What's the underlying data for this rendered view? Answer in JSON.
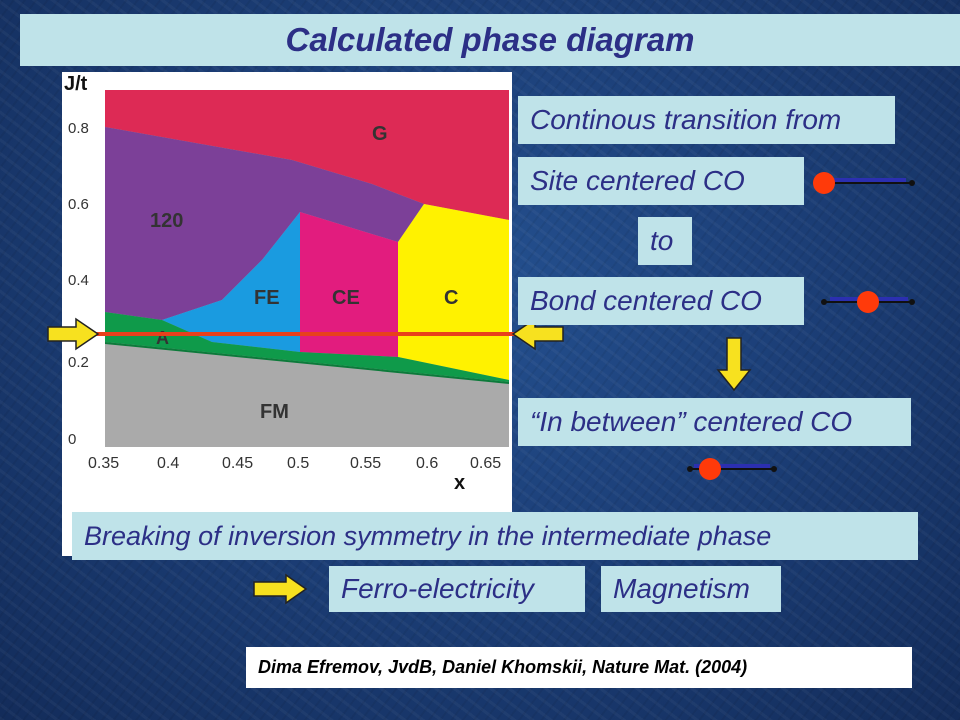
{
  "title": "Calculated phase diagram",
  "labels": {
    "continuous": "Continous transition from",
    "site_centered": "Site centered CO",
    "to": "to",
    "bond_centered": "Bond centered CO",
    "in_between": "“In between” centered CO",
    "breaking": "Breaking of inversion symmetry in the intermediate phase",
    "ferro": "Ferro-electricity",
    "magnetism": "Magnetism"
  },
  "citation": "Dima Efremov, JvdB, Daniel Khomskii, Nature Mat. (2004)",
  "diagram": {
    "y_axis_label": "J/t",
    "x_axis_label": "x",
    "x_ticks": [
      "0.35",
      "0.4",
      "0.45",
      "0.5",
      "0.55",
      "0.6",
      "0.65"
    ],
    "y_ticks": [
      "0",
      "0.2",
      "0.4",
      "0.6",
      "0.8"
    ],
    "regions": {
      "G": "G",
      "r120": "120",
      "FE": "FE",
      "CE": "CE",
      "C": "C",
      "A": "A",
      "FM": "FM"
    }
  },
  "colors": {
    "box_bg": "#bfe3e9",
    "box_text": "#2c2f86",
    "G": "#dd2a55",
    "r120": "#7c4098",
    "FE": "#1a9be0",
    "CE": "#e21c7e",
    "C": "#fff200",
    "A": "#0f9a4a",
    "FM": "#aaaaaa",
    "arrow": "#f7e11f",
    "cut_line": "#e8401c",
    "atom": "#ff3a0a"
  }
}
